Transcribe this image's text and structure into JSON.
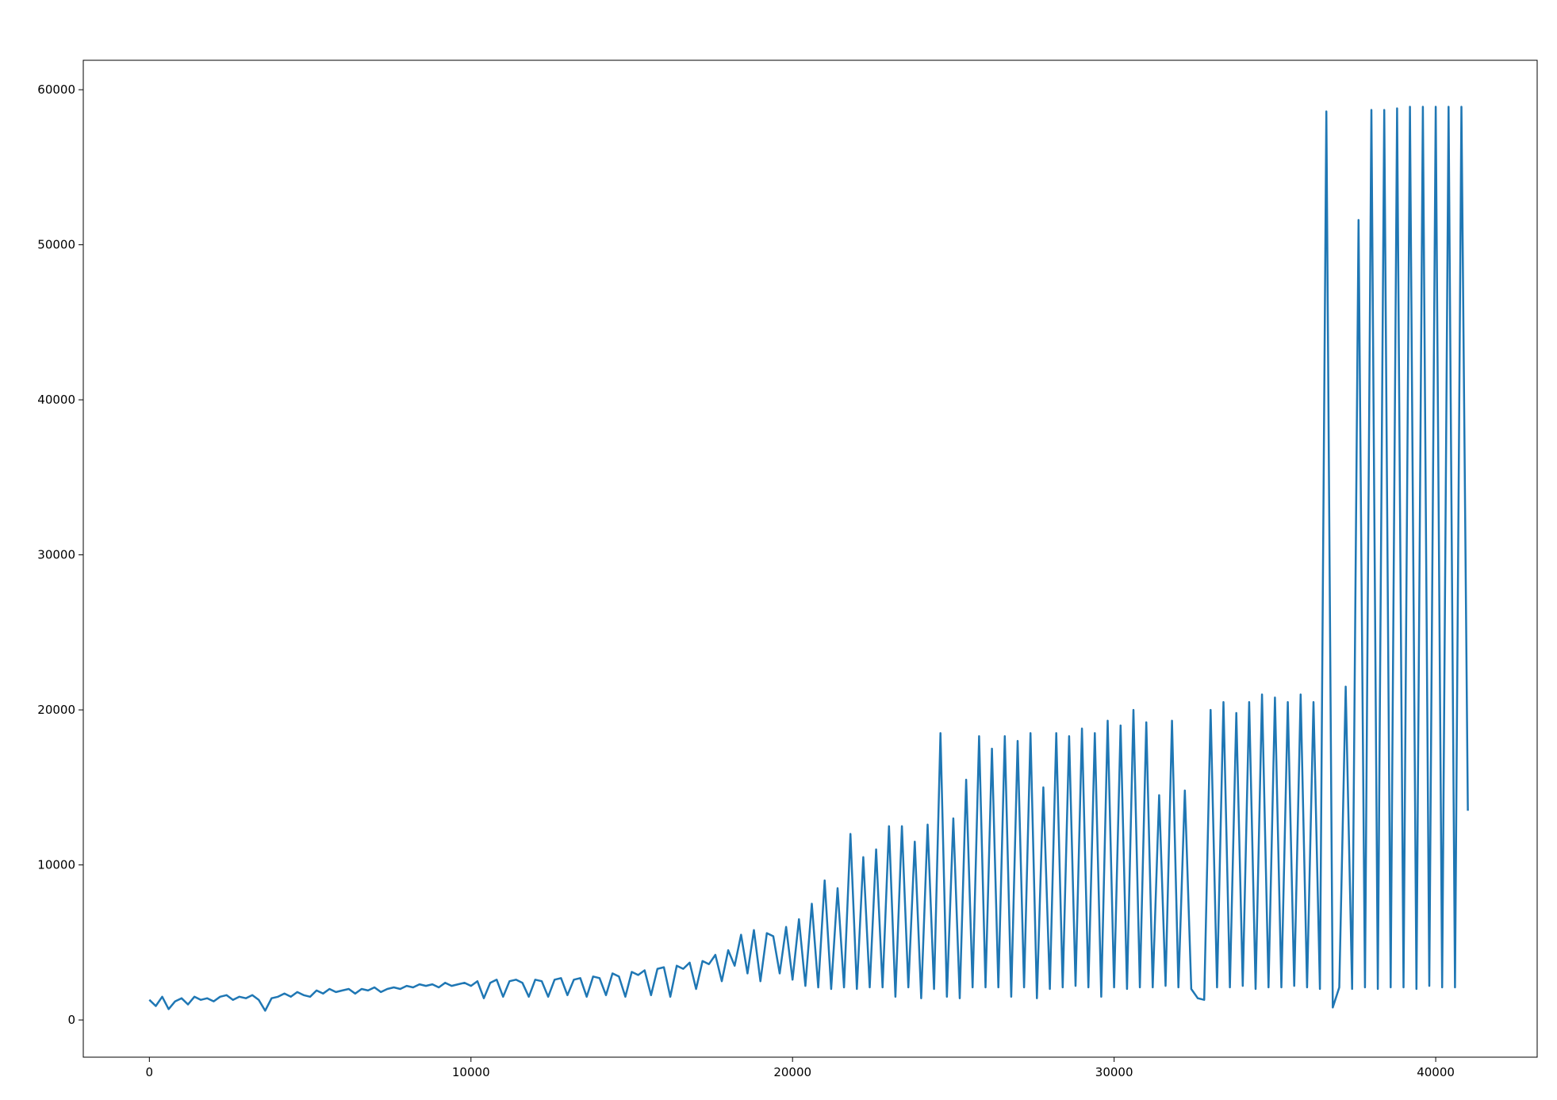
{
  "chart_data": {
    "type": "line",
    "x": [
      0,
      200,
      400,
      600,
      800,
      1000,
      1200,
      1400,
      1600,
      1800,
      2000,
      2200,
      2400,
      2600,
      2800,
      3000,
      3200,
      3400,
      3600,
      3800,
      4000,
      4200,
      4400,
      4600,
      4800,
      5000,
      5200,
      5400,
      5600,
      5800,
      6000,
      6200,
      6400,
      6600,
      6800,
      7000,
      7200,
      7400,
      7600,
      7800,
      8000,
      8200,
      8400,
      8600,
      8800,
      9000,
      9200,
      9400,
      9600,
      9800,
      10000,
      10200,
      10400,
      10600,
      10800,
      11000,
      11200,
      11400,
      11600,
      11800,
      12000,
      12200,
      12400,
      12600,
      12800,
      13000,
      13200,
      13400,
      13600,
      13800,
      14000,
      14200,
      14400,
      14600,
      14800,
      15000,
      15200,
      15400,
      15600,
      15800,
      16000,
      16200,
      16400,
      16600,
      16800,
      17000,
      17200,
      17400,
      17600,
      17800,
      18000,
      18200,
      18400,
      18600,
      18800,
      19000,
      19200,
      19400,
      19600,
      19800,
      20000,
      20200,
      20400,
      20600,
      20800,
      21000,
      21200,
      21400,
      21600,
      21800,
      22000,
      22200,
      22400,
      22600,
      22800,
      23000,
      23200,
      23400,
      23600,
      23800,
      24000,
      24200,
      24400,
      24600,
      24800,
      25000,
      25200,
      25400,
      25600,
      25800,
      26000,
      26200,
      26400,
      26600,
      26800,
      27000,
      27200,
      27400,
      27600,
      27800,
      28000,
      28200,
      28400,
      28600,
      28800,
      29000,
      29200,
      29400,
      29600,
      29800,
      30000,
      30200,
      30400,
      30600,
      30800,
      31000,
      31200,
      31400,
      31600,
      31800,
      32000,
      32200,
      32400,
      32600,
      32800,
      33000,
      33200,
      33400,
      33600,
      33800,
      34000,
      34200,
      34400,
      34600,
      34800,
      35000,
      35200,
      35400,
      35600,
      35800,
      36000,
      36200,
      36400,
      36600,
      36800,
      37000,
      37200,
      37400,
      37600,
      37800,
      38000,
      38200,
      38400,
      38600,
      38800,
      39000,
      39200,
      39400,
      39600,
      39800,
      40000,
      40200,
      40400,
      40600,
      40800,
      41000
    ],
    "series": [
      {
        "color": "#1f77b4",
        "values": [
          1300,
          900,
          1500,
          700,
          1200,
          1400,
          1000,
          1500,
          1300,
          1400,
          1200,
          1500,
          1600,
          1300,
          1500,
          1400,
          1600,
          1300,
          600,
          1400,
          1500,
          1700,
          1500,
          1800,
          1600,
          1500,
          1900,
          1700,
          2000,
          1800,
          1900,
          2000,
          1700,
          2000,
          1900,
          2100,
          1800,
          2000,
          2100,
          2000,
          2200,
          2100,
          2300,
          2200,
          2300,
          2100,
          2400,
          2200,
          2300,
          2400,
          2200,
          2500,
          1400,
          2400,
          2600,
          1500,
          2500,
          2600,
          2400,
          1500,
          2600,
          2500,
          1500,
          2600,
          2700,
          1600,
          2600,
          2700,
          1500,
          2800,
          2700,
          1600,
          3000,
          2800,
          1500,
          3100,
          2900,
          3200,
          1600,
          3300,
          3400,
          1500,
          3500,
          3300,
          3700,
          2000,
          3800,
          3600,
          4200,
          2500,
          4500,
          3500,
          5500,
          3000,
          5800,
          2500,
          5600,
          5400,
          3000,
          6000,
          2600,
          6500,
          2200,
          7500,
          2100,
          9000,
          2000,
          8500,
          2100,
          12000,
          2000,
          10500,
          2100,
          11000,
          2100,
          12500,
          1500,
          12500,
          2100,
          11500,
          1400,
          12600,
          2000,
          18500,
          1500,
          13000,
          1400,
          15500,
          2100,
          18300,
          2100,
          17500,
          2100,
          18300,
          1500,
          18000,
          2100,
          18500,
          1400,
          15000,
          2000,
          18500,
          2100,
          18300,
          2200,
          18800,
          2100,
          18500,
          1500,
          19300,
          2100,
          19000,
          2000,
          20000,
          2100,
          19200,
          2100,
          14500,
          2200,
          19300,
          2100,
          14800,
          2000,
          1400,
          1300,
          20000,
          2100,
          20500,
          2100,
          19800,
          2200,
          20500,
          2000,
          21000,
          2100,
          20800,
          2100,
          20500,
          2200,
          21000,
          2100,
          20500,
          2000,
          58600,
          800,
          2100,
          21500,
          2000,
          51600,
          2100,
          58700,
          2000,
          58700,
          2100,
          58800,
          2100,
          58900,
          2000,
          58900,
          2200,
          58900,
          2100,
          58900,
          2100,
          58900,
          13500
        ]
      }
    ],
    "xlim": [
      -2055,
      43155
    ],
    "xticks": [
      0,
      10000,
      20000,
      30000,
      40000
    ],
    "ylim": [
      -2400,
      61900
    ],
    "yticks": [
      0,
      10000,
      20000,
      30000,
      40000,
      50000,
      60000
    ]
  }
}
